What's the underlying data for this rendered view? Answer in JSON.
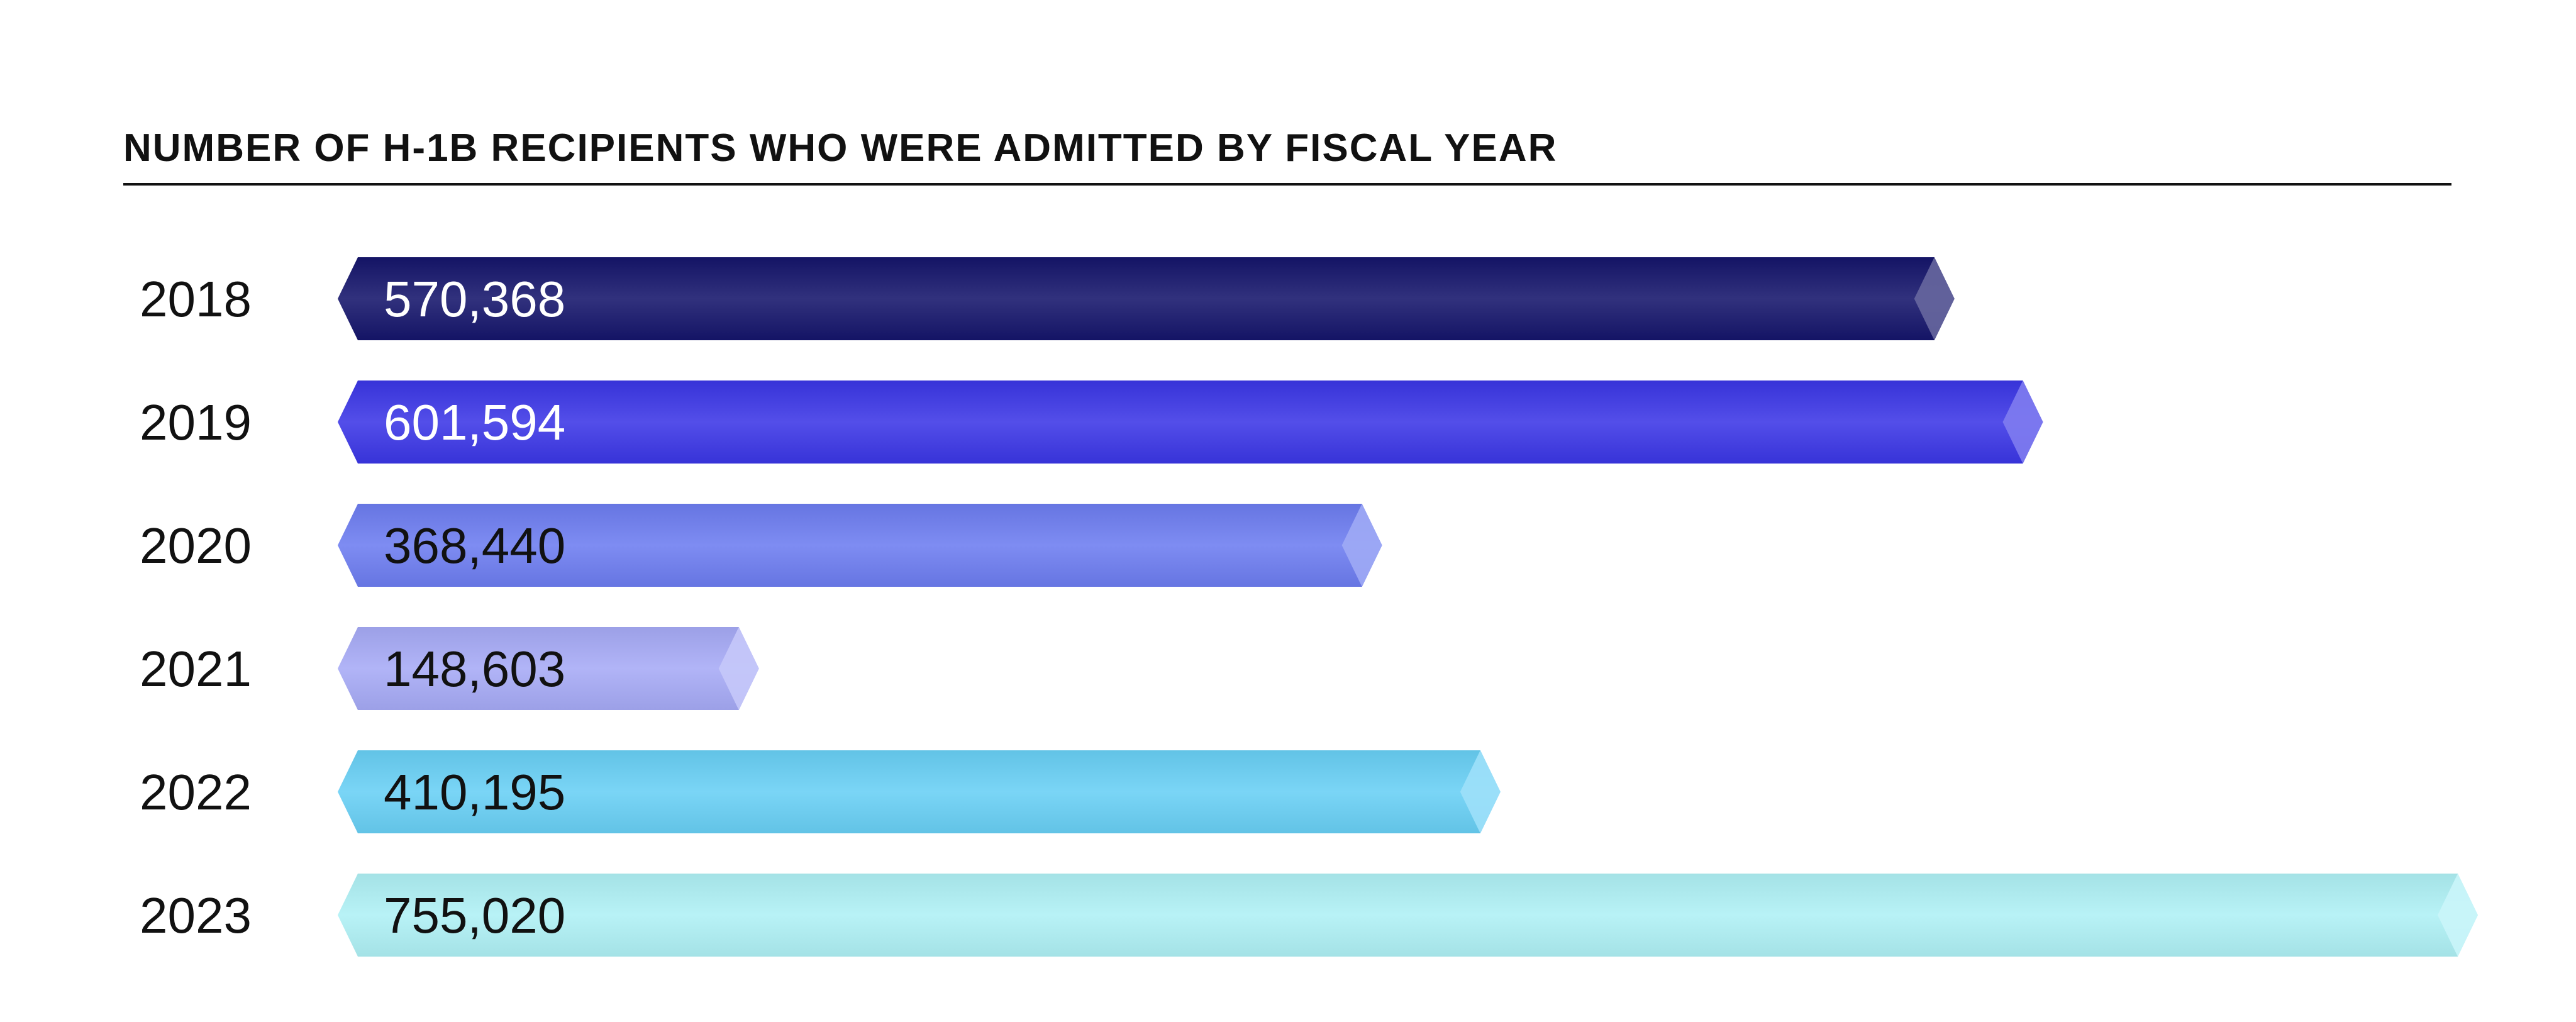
{
  "chart_data": {
    "type": "bar",
    "orientation": "horizontal",
    "title": "NUMBER OF H-1B RECIPIENTS WHO WERE ADMITTED BY FISCAL YEAR",
    "categories": [
      "2018",
      "2019",
      "2020",
      "2021",
      "2022",
      "2023"
    ],
    "values": [
      570368,
      601594,
      368440,
      148603,
      410195,
      755020
    ],
    "value_labels": [
      "570,368",
      "601,594",
      "368,440",
      "148,603",
      "410,195",
      "755,020"
    ],
    "colors": [
      "#15156b",
      "#3b36e6",
      "#6c7cf0",
      "#a6aaf6",
      "#68cff5",
      "#aef0f5"
    ],
    "label_colors": [
      "#ffffff",
      "#ffffff",
      "#111111",
      "#111111",
      "#111111",
      "#111111"
    ],
    "xlim": [
      0,
      755020
    ],
    "grid": false,
    "legend": "none"
  }
}
